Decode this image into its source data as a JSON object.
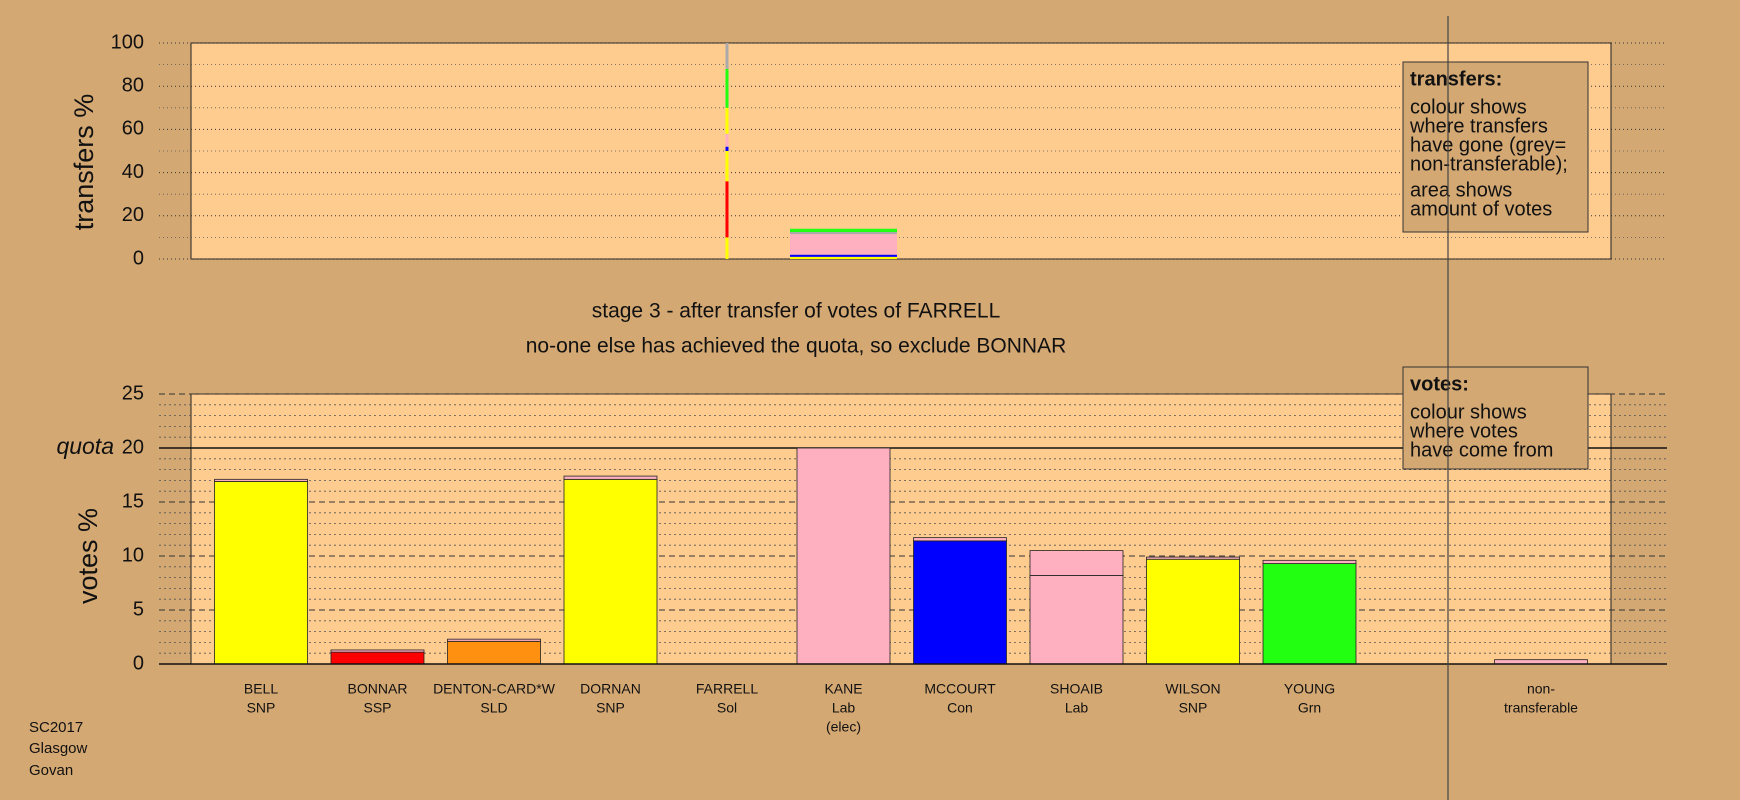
{
  "footer": [
    "SC2017",
    "Glasgow",
    "Govan"
  ],
  "chart_data": [
    {
      "type": "transfer-columns",
      "ylabel": "transfers %",
      "ylim": [
        0,
        100
      ],
      "yticks": [
        0,
        20,
        40,
        60,
        80,
        100
      ],
      "minor_yticks": [
        10,
        30,
        50,
        70,
        90
      ],
      "legend": {
        "title": "transfers:",
        "lines": [
          "colour shows",
          "where transfers",
          "have gone (grey=",
          "non-transferable);",
          "area shows",
          "amount of votes"
        ]
      },
      "columns": [
        {
          "name": "FARRELL",
          "values": [
            10,
            26,
            14,
            2,
            6,
            12,
            18,
            12
          ],
          "colors": [
            "#ffff00",
            "#ff0000",
            "#ffff00",
            "#0000ff",
            "#ffb0c0",
            "#ffff00",
            "#22ff11",
            "#aaaaaa"
          ]
        },
        {
          "name": "KANE",
          "values": [
            1,
            1,
            9.5,
            1,
            1.5
          ],
          "colors": [
            "#ffff00",
            "#0000ff",
            "#ffb0c0",
            "#aaaaaa",
            "#22ff11"
          ]
        }
      ]
    },
    {
      "type": "stacked-bar",
      "title": "stage 3 - after transfer of votes of FARRELL",
      "subtitle": "no-one else has achieved the quota, so exclude BONNAR",
      "ylabel": "votes %",
      "ylim": [
        0,
        25
      ],
      "yticks": [
        0,
        5,
        10,
        15,
        20,
        25
      ],
      "minor_yticks": [
        1,
        2,
        3,
        4,
        6,
        7,
        8,
        9,
        11,
        12,
        13,
        14,
        16,
        17,
        18,
        19,
        21,
        22,
        23,
        24
      ],
      "quota": {
        "value": 20,
        "label": "quota"
      },
      "legend": {
        "title": "votes:",
        "lines": [
          "colour shows",
          "where votes",
          "have come from"
        ]
      },
      "categories": [
        [
          "BELL",
          "SNP"
        ],
        [
          "BONNAR",
          "SSP"
        ],
        [
          "DENTON-CARD*W",
          "SLD"
        ],
        [
          "DORNAN",
          "SNP"
        ],
        [
          "FARRELL",
          "Sol"
        ],
        [
          "KANE",
          "Lab",
          "(elec)"
        ],
        [
          "MCCOURT",
          "Con"
        ],
        [
          "SHOAIB",
          "Lab"
        ],
        [
          "WILSON",
          "SNP"
        ],
        [
          "YOUNG",
          "Grn"
        ],
        [
          "non-",
          "transferable"
        ]
      ],
      "series": [
        {
          "colors": [
            "#ffff00",
            "#ff0000",
            "#ff9010",
            "#ffff00",
            "#ffb0c0",
            "#ffb0c0",
            "#0000ff",
            "#ffb0c0",
            "#ffff00",
            "#22ff11",
            "#ffb0c0"
          ],
          "values": [
            16.9,
            1.1,
            2.1,
            17.1,
            0,
            20,
            11.4,
            8.2,
            9.7,
            9.3,
            0
          ]
        },
        {
          "color": "#ffb0c0",
          "values": [
            0.2,
            0.2,
            0.2,
            0.3,
            0,
            0,
            0.3,
            2.3,
            0.2,
            0.3,
            0.4
          ]
        }
      ]
    }
  ]
}
